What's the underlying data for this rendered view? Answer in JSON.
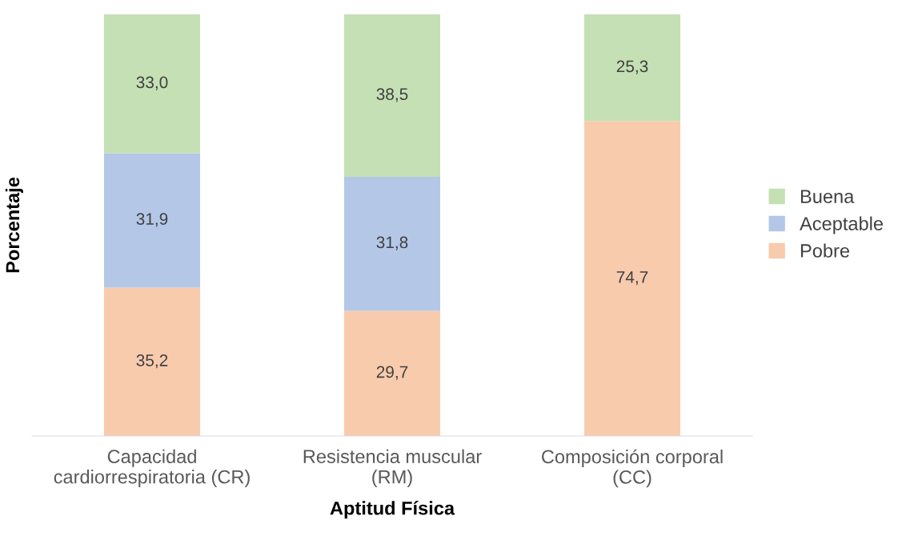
{
  "chart_data": {
    "type": "bar",
    "stacked": true,
    "xlabel": "Aptitud Física",
    "ylabel": "Porcentaje",
    "categories": [
      "Capacidad\ncardiorrespiratoria (CR)",
      "Resistencia muscular\n(RM)",
      "Composición corporal\n(CC)"
    ],
    "series": [
      {
        "name": "Pobre",
        "color": "#f8cbad",
        "values": [
          35.2,
          29.7,
          74.7
        ],
        "value_labels": [
          "35,2",
          "29,7",
          "74,7"
        ]
      },
      {
        "name": "Aceptable",
        "color": "#b4c7e7",
        "values": [
          31.9,
          31.8,
          null
        ],
        "value_labels": [
          "31,9",
          "31,8",
          null
        ]
      },
      {
        "name": "Buena",
        "color": "#c5e0b4",
        "values": [
          33.0,
          38.5,
          25.3
        ],
        "value_labels": [
          "33,0",
          "38,5",
          "25,3"
        ]
      }
    ],
    "ylim": [
      0,
      100
    ],
    "tick_labels": "x",
    "grid": false,
    "legend": "right"
  }
}
